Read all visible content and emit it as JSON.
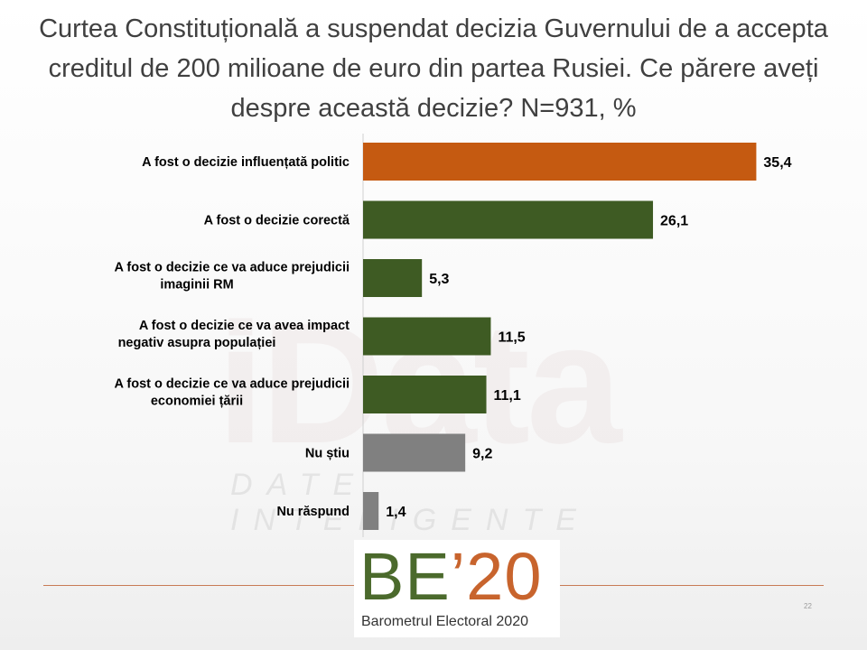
{
  "slide": {
    "title": "Curtea Constituțională a suspendat decizia Guvernului de a accepta creditul de 200 milioane de euro din partea Rusiei. Ce părere aveți despre această decizie?  N=931, %",
    "watermark_main": "iData",
    "watermark_sub": "DATE INTELIGENTE",
    "logo_be": "BE",
    "logo_apostrophe": "’",
    "logo_year": "20",
    "logo_caption": "Barometrul Electoral 2020",
    "page_number": "22"
  },
  "colors": {
    "orange": "#c55a11",
    "green": "#3e5b23",
    "gray": "#808080",
    "axis": "#d0d0d0",
    "rule": "#c87c56"
  },
  "chart_data": {
    "type": "bar",
    "orientation": "horizontal",
    "title": "",
    "xlabel": "",
    "ylabel": "",
    "xlim": [
      0,
      40
    ],
    "grid": false,
    "legend": "none",
    "data_labels": true,
    "categories": [
      "A fost o decizie influențată politic",
      "A fost o decizie corectă",
      "A fost o decizie ce va aduce prejudicii imaginii RM",
      "A fost o decizie ce va avea impact negativ asupra populației",
      "A fost o decizie ce va aduce prejudicii economiei țării",
      "Nu știu",
      "Nu răspund"
    ],
    "category_lines": [
      [
        "A fost o decizie influențată politic"
      ],
      [
        "A fost o decizie corectă"
      ],
      [
        "A fost o decizie ce va aduce prejudicii",
        "imaginii RM"
      ],
      [
        "A fost o decizie ce va avea impact",
        "negativ asupra populației"
      ],
      [
        "A fost o decizie ce va aduce prejudicii",
        "economiei țării"
      ],
      [
        "Nu știu"
      ],
      [
        "Nu răspund"
      ]
    ],
    "values": [
      35.4,
      26.1,
      5.3,
      11.5,
      11.1,
      9.2,
      1.4
    ],
    "value_labels": [
      "35,4",
      "26,1",
      "5,3",
      "11,5",
      "11,1",
      "9,2",
      "1,4"
    ],
    "bar_colors": [
      "#c55a11",
      "#3e5b23",
      "#3e5b23",
      "#3e5b23",
      "#3e5b23",
      "#808080",
      "#808080"
    ]
  }
}
